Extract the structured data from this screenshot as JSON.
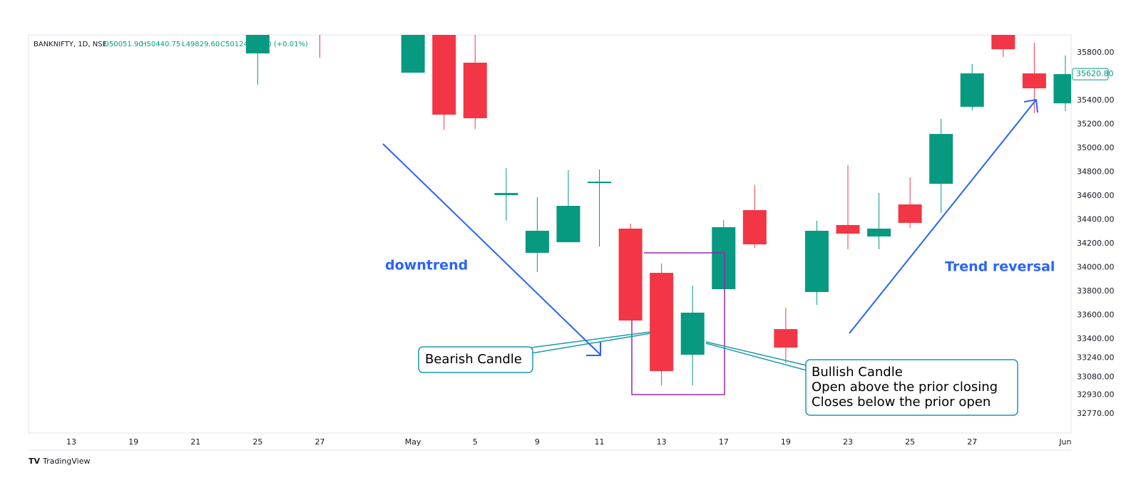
{
  "chart_data": {
    "type": "candlestick",
    "legend": {
      "symbol": "BANKNIFTY, 1D, NSE",
      "open": "O50051.90",
      "high": "H50440.75",
      "low": "L49829.60",
      "close": "C50124.",
      "change": "60 (+0.01%)"
    },
    "categories": [
      "13",
      null,
      "19",
      null,
      "21",
      null,
      "25",
      null,
      "27",
      null,
      null,
      "May",
      null,
      "5",
      null,
      "9",
      null,
      "11",
      null,
      "13",
      null,
      "17",
      null,
      "19",
      null,
      "23",
      null,
      "25",
      null,
      "27",
      null,
      null,
      "Jun"
    ],
    "open": [
      null,
      null,
      null,
      null,
      null,
      null,
      35795,
      null,
      36300,
      null,
      null,
      35633,
      36100,
      35717,
      34606,
      34122,
      34211,
      34712,
      34325,
      33954,
      33267,
      33817,
      34480,
      33482,
      33793,
      34355,
      34259,
      34528,
      34701,
      35347,
      36000,
      35627,
      35376
    ],
    "high": [
      null,
      null,
      null,
      null,
      null,
      null,
      36100,
      null,
      36400,
      null,
      null,
      36150,
      36200,
      36000,
      34833,
      34588,
      34815,
      34821,
      34367,
      34032,
      33847,
      34396,
      34689,
      33662,
      34391,
      34857,
      34624,
      34755,
      35245,
      35705,
      36050,
      35884,
      35777
    ],
    "low": [
      null,
      null,
      null,
      null,
      null,
      null,
      35532,
      null,
      35759,
      null,
      null,
      35633,
      35155,
      35161,
      34391,
      33960,
      34211,
      34175,
      33554,
      33010,
      33010,
      33817,
      34163,
      33196,
      33685,
      34152,
      34152,
      34331,
      34456,
      35317,
      35765,
      35293,
      35311
    ],
    "close": [
      null,
      null,
      null,
      null,
      null,
      null,
      36000,
      null,
      36000,
      null,
      null,
      36050,
      35281,
      35251,
      34624,
      34307,
      34516,
      34719,
      33554,
      33130,
      33620,
      34337,
      34193,
      33327,
      34307,
      34283,
      34325,
      34373,
      35119,
      35627,
      35830,
      35502,
      35621
    ],
    "up_color": "#089981",
    "down_color": "#f23645",
    "ylim": [
      32610,
      35950
    ],
    "yticks": [
      {
        "value": 35800,
        "label": "35800.00"
      },
      {
        "value": 35400,
        "label": "35400.00"
      },
      {
        "value": 35200,
        "label": "35200.00"
      },
      {
        "value": 35000,
        "label": "35000.00"
      },
      {
        "value": 34800,
        "label": "34800.00"
      },
      {
        "value": 34600,
        "label": "34600.00"
      },
      {
        "value": 34400,
        "label": "34400.00"
      },
      {
        "value": 34200,
        "label": "34200.00"
      },
      {
        "value": 34000,
        "label": "34000.00"
      },
      {
        "value": 33800,
        "label": "33800.00"
      },
      {
        "value": 33600,
        "label": "33600.00"
      },
      {
        "value": 33400,
        "label": "33400.00"
      },
      {
        "value": 33240,
        "label": "33240.00"
      },
      {
        "value": 33080,
        "label": "33080.00"
      },
      {
        "value": 32930,
        "label": "32930.00"
      },
      {
        "value": 32770,
        "label": "32770.00"
      }
    ],
    "last_price": {
      "value": 35620.8,
      "label": "35620.80"
    },
    "annotations": {
      "downtrend": "downtrend",
      "reversal": "Trend reversal",
      "bearish": "Bearish Candle",
      "bullish": [
        "Bullish Candle",
        "Open above the prior closing",
        "Closes below the prior open"
      ]
    },
    "watermark": "TradingView"
  }
}
